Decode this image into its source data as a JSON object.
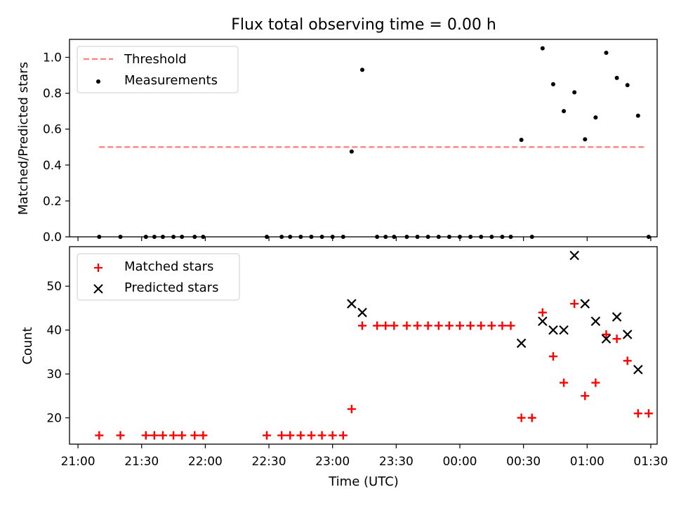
{
  "title": "Flux total observing time = 0.00 h",
  "chart_data": [
    {
      "type": "scatter",
      "ylabel": "Matched/Predicted stars",
      "ylim": [
        0,
        1.1
      ],
      "yticks": [
        "0.0",
        "0.2",
        "0.4",
        "0.6",
        "0.8",
        "1.0"
      ],
      "grid": false,
      "legend_position": "top-left",
      "threshold": {
        "name": "Threshold",
        "value": 0.5,
        "x_start": "21:10",
        "x_end": "01:27",
        "color": "#ff7f7f"
      },
      "series": [
        {
          "name": "Measurements",
          "color": "#000000",
          "points": [
            [
              "21:10",
              0
            ],
            [
              "21:20",
              0
            ],
            [
              "21:32",
              0
            ],
            [
              "21:36",
              0
            ],
            [
              "21:40",
              0
            ],
            [
              "21:45",
              0
            ],
            [
              "21:49",
              0
            ],
            [
              "21:55",
              0
            ],
            [
              "21:59",
              0
            ],
            [
              "22:29",
              0
            ],
            [
              "22:36",
              0
            ],
            [
              "22:40",
              0
            ],
            [
              "22:45",
              0
            ],
            [
              "22:50",
              0
            ],
            [
              "22:55",
              0
            ],
            [
              "23:00",
              0
            ],
            [
              "23:05",
              0
            ],
            [
              "23:09",
              0.475
            ],
            [
              "23:14",
              0.93
            ],
            [
              "23:21",
              0
            ],
            [
              "23:25",
              0
            ],
            [
              "23:29",
              0
            ],
            [
              "23:35",
              0
            ],
            [
              "23:40",
              0
            ],
            [
              "23:45",
              0
            ],
            [
              "23:50",
              0
            ],
            [
              "23:55",
              0
            ],
            [
              "00:00",
              0
            ],
            [
              "00:05",
              0
            ],
            [
              "00:10",
              0
            ],
            [
              "00:15",
              0
            ],
            [
              "00:20",
              0
            ],
            [
              "00:24",
              0
            ],
            [
              "00:29",
              0.54
            ],
            [
              "00:34",
              0
            ],
            [
              "00:39",
              1.05
            ],
            [
              "00:44",
              0.85
            ],
            [
              "00:49",
              0.7
            ],
            [
              "00:54",
              0.805
            ],
            [
              "00:59",
              0.543
            ],
            [
              "01:04",
              0.665
            ],
            [
              "01:09",
              1.025
            ],
            [
              "01:14",
              0.885
            ],
            [
              "01:19",
              0.845
            ],
            [
              "01:24",
              0.675
            ],
            [
              "01:29",
              0
            ]
          ]
        }
      ]
    },
    {
      "type": "scatter",
      "xlabel": "Time (UTC)",
      "ylabel": "Count",
      "ylim": [
        14,
        59
      ],
      "yticks": [
        "20",
        "30",
        "40",
        "50"
      ],
      "xticks": [
        "21:00",
        "21:30",
        "22:00",
        "22:30",
        "23:00",
        "23:30",
        "00:00",
        "00:30",
        "01:00",
        "01:30"
      ],
      "xlim": [
        "20:56",
        "01:33"
      ],
      "grid": false,
      "legend_position": "top-left",
      "series": [
        {
          "name": "Matched stars",
          "marker": "plus",
          "color": "#ff0000",
          "points": [
            [
              "21:10",
              16
            ],
            [
              "21:20",
              16
            ],
            [
              "21:32",
              16
            ],
            [
              "21:36",
              16
            ],
            [
              "21:40",
              16
            ],
            [
              "21:45",
              16
            ],
            [
              "21:49",
              16
            ],
            [
              "21:55",
              16
            ],
            [
              "21:59",
              16
            ],
            [
              "22:29",
              16
            ],
            [
              "22:36",
              16
            ],
            [
              "22:40",
              16
            ],
            [
              "22:45",
              16
            ],
            [
              "22:50",
              16
            ],
            [
              "22:55",
              16
            ],
            [
              "23:00",
              16
            ],
            [
              "23:05",
              16
            ],
            [
              "23:09",
              22
            ],
            [
              "23:14",
              41
            ],
            [
              "23:21",
              41
            ],
            [
              "23:25",
              41
            ],
            [
              "23:29",
              41
            ],
            [
              "23:35",
              41
            ],
            [
              "23:40",
              41
            ],
            [
              "23:45",
              41
            ],
            [
              "23:50",
              41
            ],
            [
              "23:55",
              41
            ],
            [
              "00:00",
              41
            ],
            [
              "00:05",
              41
            ],
            [
              "00:10",
              41
            ],
            [
              "00:15",
              41
            ],
            [
              "00:20",
              41
            ],
            [
              "00:24",
              41
            ],
            [
              "00:29",
              20
            ],
            [
              "00:34",
              20
            ],
            [
              "00:39",
              44
            ],
            [
              "00:44",
              34
            ],
            [
              "00:49",
              28
            ],
            [
              "00:54",
              46
            ],
            [
              "00:59",
              25
            ],
            [
              "01:04",
              28
            ],
            [
              "01:09",
              39
            ],
            [
              "01:14",
              38
            ],
            [
              "01:19",
              33
            ],
            [
              "01:24",
              21
            ],
            [
              "01:29",
              21
            ]
          ]
        },
        {
          "name": "Predicted stars",
          "marker": "x",
          "color": "#000000",
          "points": [
            [
              "23:09",
              46
            ],
            [
              "23:14",
              44
            ],
            [
              "00:29",
              37
            ],
            [
              "00:39",
              42
            ],
            [
              "00:44",
              40
            ],
            [
              "00:49",
              40
            ],
            [
              "00:54",
              57
            ],
            [
              "00:59",
              46
            ],
            [
              "01:04",
              42
            ],
            [
              "01:09",
              38
            ],
            [
              "01:14",
              43
            ],
            [
              "01:19",
              39
            ],
            [
              "01:24",
              31
            ]
          ]
        }
      ]
    }
  ]
}
